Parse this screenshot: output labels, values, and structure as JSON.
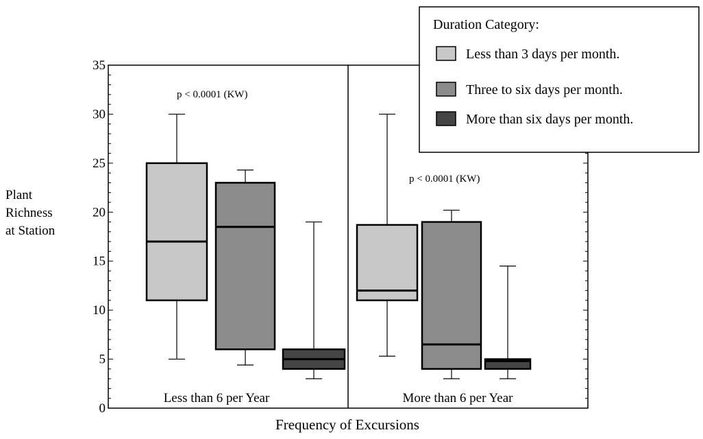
{
  "chart_data": {
    "type": "boxplot",
    "xlabel": "Frequency of Excursions",
    "ylabel": [
      "Plant",
      "Richness",
      "at Station"
    ],
    "ylim": [
      0,
      35
    ],
    "yticks": [
      0,
      5,
      10,
      15,
      20,
      25,
      30,
      35
    ],
    "groups": [
      "Less than 6 per Year",
      "More than 6 per Year"
    ],
    "annotations": [
      "p < 0.0001 (KW)",
      "p < 0.0001 (KW)"
    ],
    "legend": {
      "title": "Duration Category:",
      "position": "top-right",
      "entries": [
        "Less than 3 days per month.",
        "Three to six days per month.",
        "More than six days per month."
      ]
    },
    "series_colors": [
      "#c8c8c8",
      "#8c8c8c",
      "#444444"
    ],
    "boxes": [
      {
        "group": "Less than 6 per Year",
        "series": "Less than 3 days per month.",
        "min": 5,
        "q1": 11,
        "median": 17,
        "q3": 25,
        "max": 30
      },
      {
        "group": "Less than 6 per Year",
        "series": "Three to six days per month.",
        "min": 4.4,
        "q1": 6,
        "median": 18.5,
        "q3": 23,
        "max": 24.3
      },
      {
        "group": "Less than 6 per Year",
        "series": "More than six days per month.",
        "min": 3,
        "q1": 4,
        "median": 5,
        "q3": 6,
        "max": 19
      },
      {
        "group": "More than 6 per Year",
        "series": "Less than 3 days per month.",
        "min": 5.3,
        "q1": 11,
        "median": 12,
        "q3": 18.7,
        "max": 30
      },
      {
        "group": "More than 6 per Year",
        "series": "Three to six days per month.",
        "min": 3,
        "q1": 4,
        "median": 6.5,
        "q3": 19,
        "max": 20.2
      },
      {
        "group": "More than 6 per Year",
        "series": "More than six days per month.",
        "min": 3,
        "q1": 4,
        "median": 4.8,
        "q3": 5,
        "max": 14.5
      }
    ]
  }
}
